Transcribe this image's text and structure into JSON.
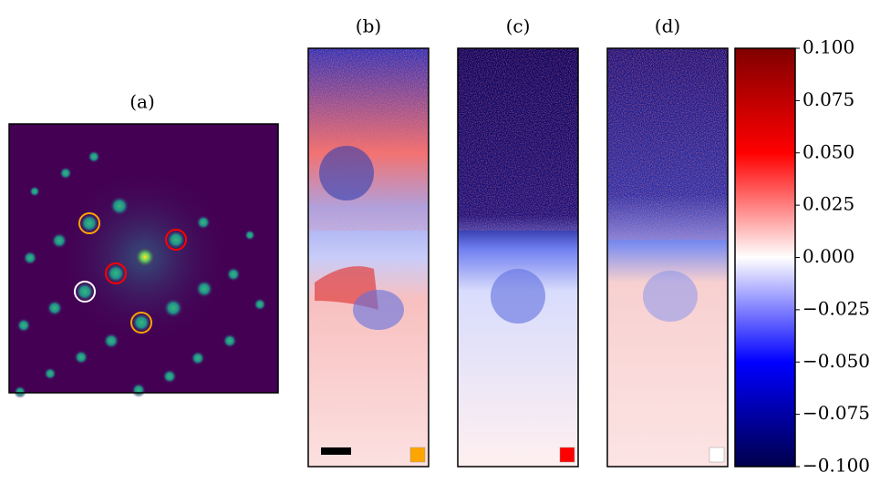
{
  "chart_data": {
    "type": "image-panels",
    "panels": [
      {
        "label": "(a)"
      },
      {
        "label": "(b)",
        "marker_color": "#ffa500"
      },
      {
        "label": "(c)",
        "marker_color": "#ff0000"
      },
      {
        "label": "(d)",
        "marker_color": "#ffffff"
      }
    ],
    "spot_colors": [
      "#ffa500",
      "#ff0000",
      "#ffffff"
    ],
    "colormap": [
      "#00004c",
      "#0000ff",
      "#ffffff",
      "#ff0000",
      "#800000"
    ],
    "ylim": [
      -0.1,
      0.1
    ],
    "yticks": [
      {
        "value": 0.1,
        "label": "0.100"
      },
      {
        "value": 0.075,
        "label": "0.075"
      },
      {
        "value": 0.05,
        "label": "0.050"
      },
      {
        "value": 0.025,
        "label": "0.025"
      },
      {
        "value": 0,
        "label": "0.000"
      },
      {
        "value": -0.025,
        "label": "−0.025"
      },
      {
        "value": -0.05,
        "label": "−0.050"
      },
      {
        "value": -0.075,
        "label": "−0.075"
      },
      {
        "value": -0.1,
        "label": "−0.100"
      }
    ]
  }
}
